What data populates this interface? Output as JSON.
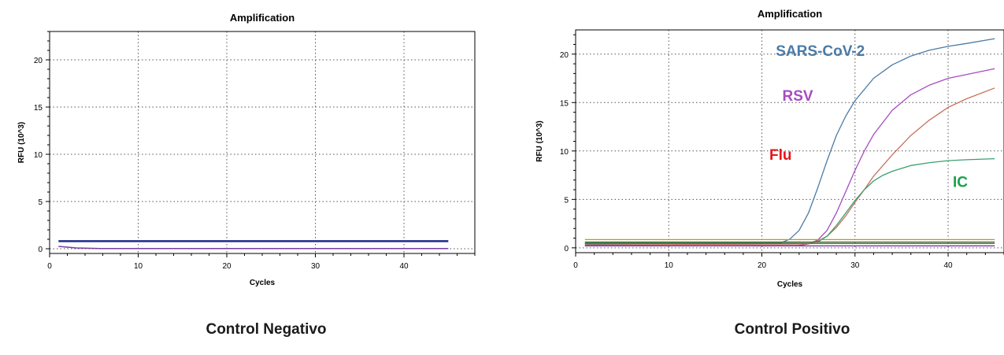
{
  "chart_data": [
    {
      "type": "line",
      "title": "Amplification",
      "xlabel": "Cycles",
      "ylabel": "RFU (10^3)",
      "xlim": [
        0,
        48
      ],
      "ylim": [
        -0.5,
        23
      ],
      "xticks": [
        0,
        10,
        20,
        30,
        40
      ],
      "yticks": [
        0,
        5,
        10,
        15,
        20
      ],
      "grid": true,
      "caption": "Control Negativo",
      "series": [
        {
          "color": "#1f2a8a",
          "width": 2.5,
          "x": [
            1,
            45
          ],
          "y": [
            0.8,
            0.8
          ]
        },
        {
          "color": "#7a3aa0",
          "width": 1.5,
          "x": [
            1,
            3,
            6,
            45
          ],
          "y": [
            0.25,
            0.08,
            0.02,
            0.02
          ]
        }
      ]
    },
    {
      "type": "line",
      "title": "Amplification",
      "xlabel": "Cycles",
      "ylabel": "RFU (10^3)",
      "xlim": [
        0,
        46
      ],
      "ylim": [
        -0.5,
        22.5
      ],
      "xticks": [
        0,
        10,
        20,
        30,
        40
      ],
      "yticks": [
        0,
        5,
        10,
        15,
        20
      ],
      "grid": true,
      "caption": "Control Positivo",
      "series": [
        {
          "name": "SARS-CoV-2",
          "color": "#4a7ba6",
          "label_x": 21.5,
          "label_y": 19.8,
          "x": [
            1,
            22,
            23,
            24,
            25,
            26,
            27,
            28,
            29,
            30,
            32,
            34,
            36,
            38,
            40,
            42,
            45
          ],
          "y": [
            0.4,
            0.5,
            0.9,
            1.8,
            3.6,
            6.2,
            9.0,
            11.6,
            13.6,
            15.2,
            17.5,
            18.9,
            19.8,
            20.4,
            20.8,
            21.1,
            21.6
          ]
        },
        {
          "name": "RSV",
          "color": "#a64cc0",
          "label_x": 22.2,
          "label_y": 15.2,
          "x": [
            1,
            24,
            25,
            26,
            27,
            28,
            29,
            30,
            31,
            32,
            34,
            36,
            38,
            40,
            42,
            45
          ],
          "y": [
            0.2,
            0.25,
            0.4,
            0.8,
            1.8,
            3.6,
            5.8,
            8.0,
            10.0,
            11.7,
            14.2,
            15.8,
            16.8,
            17.5,
            17.9,
            18.5
          ]
        },
        {
          "name": "Flu",
          "color": "#c8705c",
          "label_color": "#e8151a",
          "label_x": 20.8,
          "label_y": 9.1,
          "x": [
            1,
            25,
            26,
            27,
            28,
            29,
            30,
            31,
            32,
            34,
            36,
            38,
            40,
            42,
            45
          ],
          "y": [
            0.3,
            0.4,
            0.7,
            1.2,
            2.1,
            3.3,
            4.7,
            6.0,
            7.4,
            9.6,
            11.6,
            13.2,
            14.5,
            15.4,
            16.5
          ]
        },
        {
          "name": "IC",
          "color": "#3aa070",
          "label_color": "#19a24e",
          "label_x": 40.5,
          "label_y": 6.3,
          "x": [
            1,
            26,
            27,
            28,
            29,
            30,
            31,
            32,
            33,
            34,
            36,
            38,
            40,
            42,
            45
          ],
          "y": [
            0.5,
            0.6,
            1.2,
            2.3,
            3.6,
            4.9,
            6.0,
            6.9,
            7.5,
            7.9,
            8.5,
            8.8,
            9.0,
            9.1,
            9.2
          ]
        },
        {
          "color": "#b8a000",
          "x": [
            1,
            45
          ],
          "y": [
            0.85,
            0.85
          ]
        },
        {
          "color": "#2d6e3e",
          "x": [
            1,
            45
          ],
          "y": [
            0.6,
            0.6
          ]
        },
        {
          "color": "#8a5a30",
          "x": [
            1,
            45
          ],
          "y": [
            0.45,
            0.45
          ]
        },
        {
          "color": "#6a2a90",
          "x": [
            1,
            45
          ],
          "y": [
            0.2,
            0.2
          ]
        }
      ]
    }
  ]
}
